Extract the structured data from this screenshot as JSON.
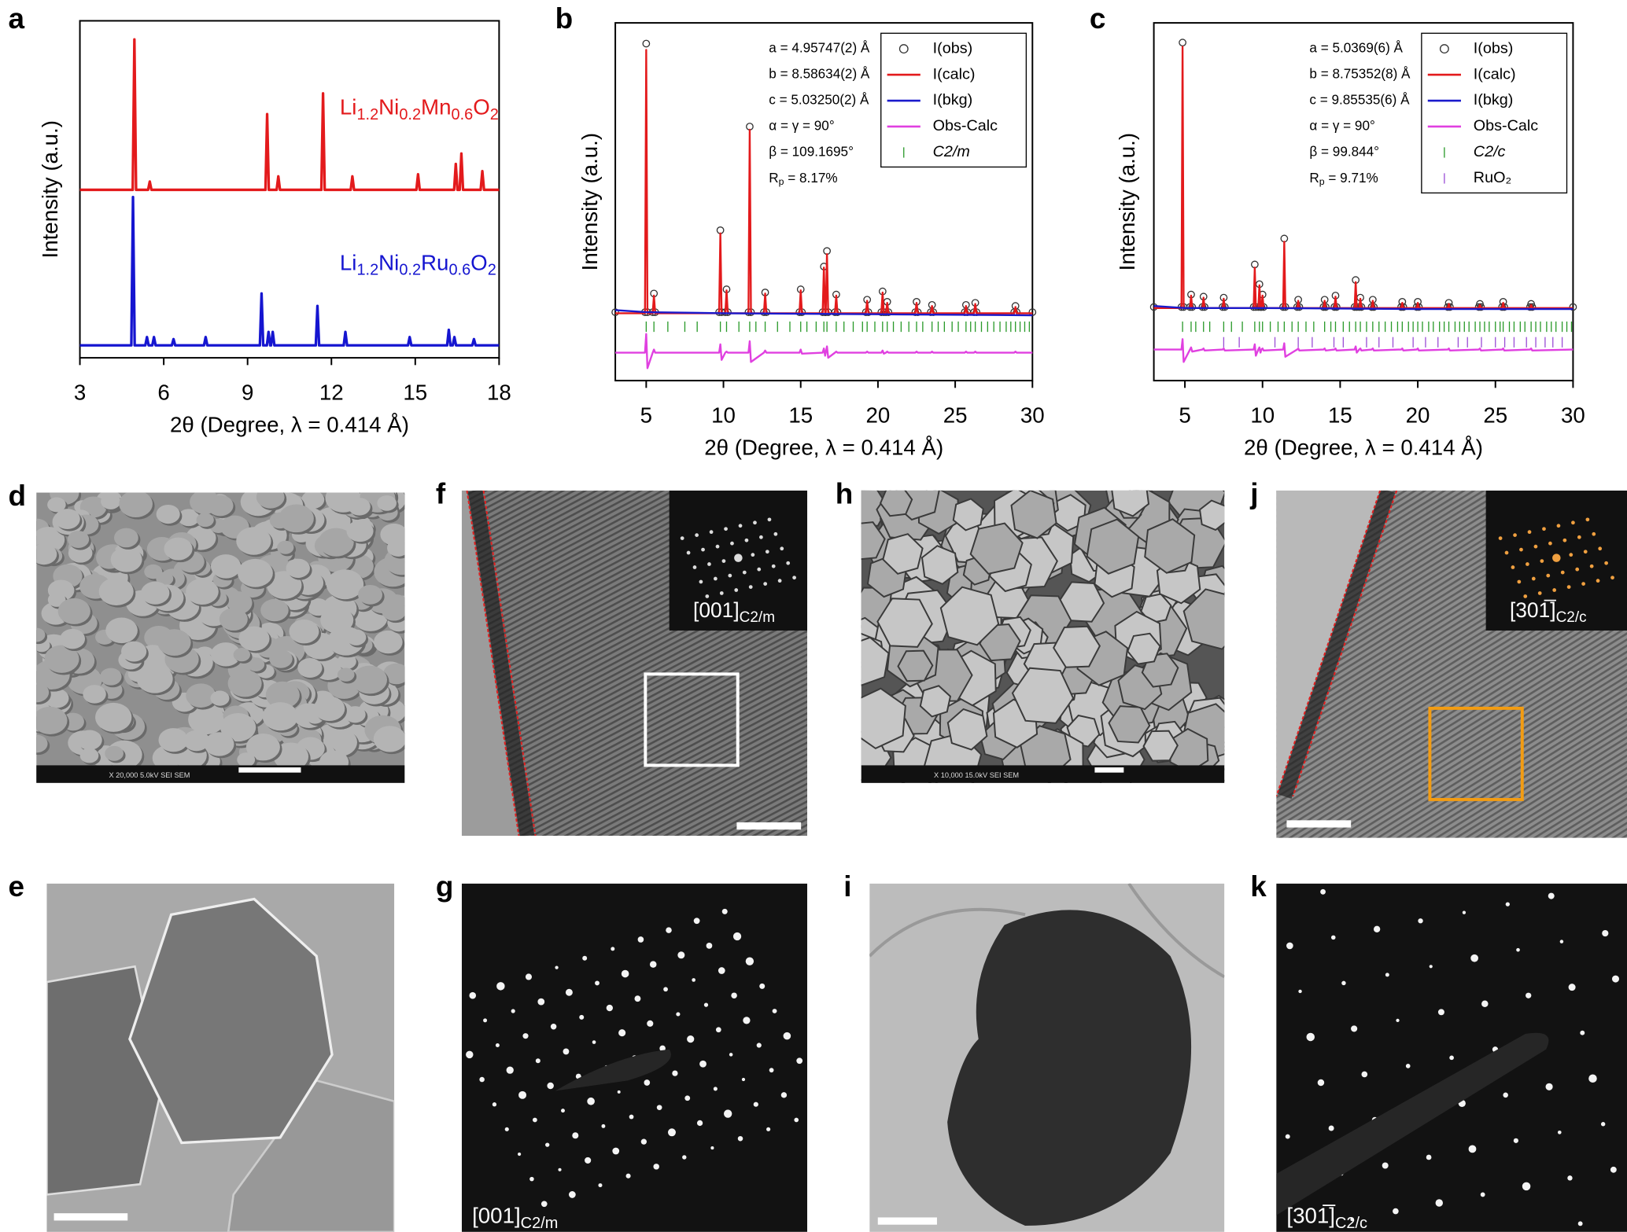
{
  "chart_data": [
    {
      "type": "line",
      "panel": "a",
      "xlabel": "2θ (Degree, λ = 0.414 Å)",
      "ylabel": "Intensity (a.u.)",
      "xlim": [
        3,
        18
      ],
      "xticks": [
        3,
        6,
        9,
        12,
        15,
        18
      ],
      "ylim": [
        0,
        325
      ],
      "series": [
        {
          "name": [
            "Li",
            "1.2",
            "Ni",
            "0.2",
            "Mn",
            "0.6",
            "O",
            "2"
          ],
          "color": "#e31a1c",
          "x": [
            3,
            4.89,
            4.95,
            5.01,
            5.44,
            5.5,
            5.56,
            9.64,
            9.7,
            9.76,
            10.04,
            10.1,
            10.16,
            11.64,
            11.7,
            11.76,
            12.69,
            12.75,
            12.81,
            15.04,
            15.1,
            15.16,
            16.39,
            16.45,
            16.51,
            16.59,
            16.65,
            16.71,
            17.34,
            17.4,
            17.46,
            18
          ],
          "values": [
            162,
            162,
            307,
            162,
            162,
            170,
            162,
            162,
            235,
            162,
            162,
            175,
            162,
            162,
            255,
            162,
            162,
            175,
            162,
            162,
            177,
            162,
            162,
            187,
            162,
            162,
            197,
            162,
            162,
            180,
            162,
            162
          ]
        },
        {
          "name": [
            "Li",
            "1.2",
            "Ni",
            "0.2",
            "Ru",
            "0.6",
            "O",
            "2"
          ],
          "color": "#1515d0",
          "x": [
            3,
            4.84,
            4.9,
            4.96,
            5.34,
            5.4,
            5.46,
            5.59,
            5.65,
            5.71,
            6.29,
            6.35,
            6.41,
            7.44,
            7.5,
            7.56,
            9.44,
            9.5,
            9.56,
            9.69,
            9.75,
            9.81,
            9.84,
            9.9,
            9.96,
            11.44,
            11.5,
            11.56,
            12.44,
            12.5,
            12.56,
            14.74,
            14.8,
            14.86,
            16.14,
            16.2,
            16.26,
            16.34,
            16.4,
            16.46,
            17.04,
            17.1,
            17.16,
            18
          ],
          "values": [
            12,
            12,
            155,
            12,
            12,
            20,
            12,
            12,
            20,
            12,
            12,
            18,
            12,
            12,
            20,
            12,
            12,
            62,
            12,
            12,
            25,
            12,
            12,
            25,
            12,
            12,
            50,
            12,
            12,
            25,
            12,
            12,
            20,
            12,
            12,
            27,
            12,
            12,
            20,
            12,
            12,
            18,
            12,
            12
          ]
        }
      ]
    },
    {
      "type": "line",
      "panel": "b",
      "xlabel": "2θ (Degree, λ = 0.414 Å)",
      "ylabel": "Intensity (a.u.)",
      "xlim": [
        3,
        30
      ],
      "xticks": [
        5,
        10,
        15,
        20,
        25,
        30
      ],
      "ylim": [
        0,
        345
      ],
      "legend": "upper right",
      "annotations": [
        "a = 4.95747(2) Å",
        "b = 8.58634(2) Å",
        "c = 5.03250(2) Å",
        "α = γ = 90°",
        "β = 109.1695°"
      ],
      "rp": [
        "R",
        "p",
        " = 8.17%"
      ],
      "x": [
        3,
        4.92,
        5.0,
        5.08,
        5.42,
        5.5,
        5.58,
        9.72,
        9.8,
        9.88,
        10.12,
        10.2,
        10.28,
        11.62,
        11.7,
        11.78,
        12.62,
        12.7,
        12.78,
        14.92,
        15.0,
        15.08,
        16.42,
        16.5,
        16.58,
        16.62,
        16.7,
        16.78,
        17.22,
        17.3,
        17.38,
        19.22,
        19.3,
        19.38,
        20.22,
        20.3,
        20.38,
        20.52,
        20.6,
        20.68,
        22.42,
        22.5,
        22.58,
        23.42,
        23.5,
        23.58,
        25.62,
        25.7,
        25.78,
        26.22,
        26.3,
        26.38,
        28.82,
        28.9,
        28.98,
        30
      ],
      "series": [
        {
          "name": "I(obs)",
          "color": "#333333",
          "style": "circles",
          "values": [
            66,
            66,
            325,
            66,
            66,
            84,
            66,
            66,
            145,
            66,
            66,
            88,
            66,
            66,
            245,
            66,
            66,
            85,
            66,
            66,
            88,
            66,
            66,
            110,
            66,
            66,
            125,
            66,
            66,
            83,
            66,
            66,
            78,
            66,
            66,
            86,
            66,
            66,
            76,
            66,
            66,
            76,
            66,
            66,
            73,
            66,
            66,
            73,
            66,
            66,
            75,
            66,
            66,
            72,
            66,
            66
          ]
        },
        {
          "name": "I(calc)",
          "color": "#e31a1c",
          "style": "line",
          "values": [
            65,
            65,
            319,
            65,
            65,
            82,
            65,
            65,
            142,
            65,
            65,
            87,
            65,
            65,
            242,
            65,
            65,
            84,
            65,
            65,
            87,
            65,
            65,
            109,
            65,
            65,
            122,
            65,
            65,
            82,
            65,
            65,
            77,
            65,
            65,
            85,
            65,
            65,
            75,
            65,
            65,
            75,
            65,
            65,
            72,
            65,
            65,
            72,
            65,
            65,
            74,
            65,
            65,
            71,
            65,
            65
          ]
        },
        {
          "name": "I(bkg)",
          "color": "#1a1acc",
          "style": "line",
          "x": [
            3,
            5,
            10,
            20,
            30
          ],
          "values": [
            68,
            66,
            65,
            64,
            63
          ]
        },
        {
          "name": "Obs-Calc",
          "color": "#e040e0",
          "style": "line",
          "values": [
            27,
            27,
            45,
            12,
            27,
            30,
            27,
            27,
            35,
            20,
            27,
            28,
            27,
            27,
            38,
            18,
            27,
            29,
            27,
            27,
            30,
            26,
            27,
            31,
            24,
            27,
            33,
            22,
            27,
            28,
            27,
            27,
            28,
            27,
            27,
            29,
            26,
            27,
            28,
            27,
            27,
            28,
            27,
            27,
            28,
            27,
            27,
            28,
            27,
            27,
            28,
            27,
            27,
            28,
            27,
            27
          ]
        },
        {
          "name": "C2/m",
          "color": "#2a9a2a",
          "style": "ticks",
          "x": [
            5.0,
            5.5,
            6.4,
            7.5,
            8.3,
            9.8,
            10.2,
            11.0,
            11.7,
            12.1,
            12.7,
            13.5,
            14.3,
            15.0,
            15.4,
            16.0,
            16.5,
            16.7,
            17.3,
            17.8,
            18.4,
            19.0,
            19.3,
            19.8,
            20.3,
            20.6,
            21.0,
            21.5,
            22.0,
            22.5,
            22.9,
            23.5,
            23.9,
            24.3,
            24.8,
            25.2,
            25.7,
            26.0,
            26.3,
            26.7,
            27.1,
            27.5,
            27.9,
            28.3,
            28.6,
            28.9,
            29.2,
            29.5,
            29.8
          ]
        }
      ]
    },
    {
      "type": "line",
      "panel": "c",
      "xlabel": "2θ (Degree, λ = 0.414 Å)",
      "ylabel": "Intensity (a.u.)",
      "xlim": [
        3,
        30
      ],
      "xticks": [
        5,
        10,
        15,
        20,
        25,
        30
      ],
      "ylim": [
        0,
        345
      ],
      "legend": "upper right",
      "annotations": [
        "a = 5.0369(6) Å",
        "b = 8.75352(8) Å",
        "c = 9.85535(6) Å",
        "α = γ = 90°",
        "β = 99.844°"
      ],
      "rp": [
        "R",
        "p",
        " = 9.71%"
      ],
      "x": [
        3,
        4.78,
        4.85,
        4.92,
        5.33,
        5.4,
        5.47,
        6.13,
        6.2,
        6.27,
        7.43,
        7.5,
        7.57,
        9.43,
        9.5,
        9.57,
        9.73,
        9.8,
        9.87,
        9.93,
        10.0,
        10.07,
        11.33,
        11.4,
        11.47,
        12.23,
        12.3,
        12.37,
        13.93,
        14.0,
        14.07,
        14.63,
        14.7,
        14.77,
        15.93,
        16.0,
        16.07,
        16.23,
        16.3,
        16.37,
        17.03,
        17.1,
        17.17,
        18.93,
        19.0,
        19.07,
        19.93,
        20.0,
        20.07,
        21.93,
        22.0,
        22.07,
        23.93,
        24.0,
        24.07,
        25.43,
        25.5,
        25.57,
        27.23,
        27.3,
        27.37,
        30
      ],
      "series": [
        {
          "name": "I(obs)",
          "color": "#333333",
          "style": "circles",
          "values": [
            71,
            71,
            326,
            71,
            71,
            83,
            71,
            71,
            81,
            71,
            71,
            80,
            71,
            71,
            112,
            71,
            71,
            93,
            71,
            71,
            83,
            71,
            71,
            137,
            71,
            71,
            78,
            71,
            71,
            78,
            71,
            71,
            82,
            71,
            71,
            97,
            71,
            71,
            80,
            71,
            71,
            78,
            71,
            71,
            76,
            71,
            71,
            76,
            71,
            71,
            75,
            71,
            71,
            74,
            71,
            71,
            76,
            71,
            71,
            74,
            71,
            71
          ]
        },
        {
          "name": "I(calc)",
          "color": "#e31a1c",
          "style": "line",
          "values": [
            70,
            70,
            322,
            70,
            70,
            82,
            70,
            70,
            80,
            70,
            70,
            79,
            70,
            70,
            109,
            70,
            70,
            92,
            70,
            70,
            82,
            70,
            70,
            134,
            70,
            70,
            77,
            70,
            70,
            77,
            70,
            70,
            81,
            70,
            70,
            95,
            70,
            70,
            79,
            70,
            70,
            77,
            70,
            70,
            75,
            70,
            70,
            75,
            70,
            70,
            74,
            70,
            70,
            73,
            70,
            70,
            75,
            70,
            70,
            73,
            70,
            70
          ]
        },
        {
          "name": "I(bkg)",
          "color": "#1a1acc",
          "style": "line",
          "x": [
            3,
            5,
            10,
            20,
            30
          ],
          "values": [
            72,
            70,
            70,
            69,
            69
          ]
        },
        {
          "name": "Obs-Calc",
          "color": "#e040e0",
          "style": "line",
          "values": [
            30,
            30,
            40,
            18,
            30,
            32,
            28,
            30,
            31,
            29,
            30,
            31,
            29,
            30,
            35,
            24,
            30,
            32,
            27,
            30,
            31,
            29,
            30,
            36,
            23,
            30,
            31,
            29,
            30,
            31,
            29,
            30,
            31,
            29,
            30,
            33,
            27,
            30,
            31,
            29,
            30,
            31,
            29,
            30,
            31,
            29,
            30,
            31,
            29,
            30,
            31,
            29,
            30,
            31,
            29,
            30,
            31,
            29,
            30,
            31,
            29,
            30
          ]
        },
        {
          "name": "C2/c",
          "color": "#2a9a2a",
          "style": "ticks",
          "x": [
            4.85,
            5.4,
            5.7,
            6.2,
            6.6,
            7.5,
            8.0,
            8.7,
            9.5,
            9.8,
            10.0,
            10.5,
            11.0,
            11.4,
            11.9,
            12.3,
            12.8,
            13.3,
            14.0,
            14.4,
            14.7,
            15.2,
            15.6,
            16.0,
            16.3,
            16.7,
            17.1,
            17.5,
            17.9,
            18.3,
            18.7,
            19.0,
            19.4,
            19.7,
            20.0,
            20.3,
            20.7,
            21.0,
            21.4,
            21.7,
            22.0,
            22.4,
            22.7,
            23.0,
            23.3,
            23.7,
            24.0,
            24.3,
            24.6,
            25.0,
            25.3,
            25.5,
            25.9,
            26.2,
            26.6,
            26.9,
            27.3,
            27.6,
            27.9,
            28.3,
            28.6,
            28.9,
            29.3,
            29.6,
            29.9
          ]
        },
        {
          "name": "RuO₂",
          "color": "#9b4fd6",
          "style": "ticks",
          "x": [
            7.5,
            8.5,
            10.8,
            12.3,
            13.2,
            14.6,
            15.2,
            16.7,
            17.5,
            18.4,
            19.7,
            20.5,
            21.3,
            22.6,
            23.2,
            24.1,
            25.0,
            25.6,
            26.2,
            27.0,
            27.6,
            28.2,
            28.7,
            29.3
          ]
        }
      ]
    }
  ],
  "images": [
    {
      "panel": "d",
      "kind": "sem-grains",
      "caption": "X 20,000   5.0kV   SEI      SEM"
    },
    {
      "panel": "f",
      "kind": "hrtem",
      "inset": [
        "[001]",
        "C2/m"
      ],
      "box_color": "#ffffff"
    },
    {
      "panel": "h",
      "kind": "sem-facets",
      "caption": "X 10,000   15.0kV   SEI      SEM"
    },
    {
      "panel": "j",
      "kind": "hrtem",
      "inset": [
        "[301̅]",
        "C2/c"
      ],
      "box_color": "#f39c12"
    },
    {
      "panel": "e",
      "kind": "tem-light"
    },
    {
      "panel": "g",
      "kind": "saed",
      "inset": [
        "[001]",
        "C2/m"
      ]
    },
    {
      "panel": "i",
      "kind": "tem-dark"
    },
    {
      "panel": "k",
      "kind": "saed",
      "inset": [
        "[301̅]",
        "C2/c"
      ]
    }
  ]
}
